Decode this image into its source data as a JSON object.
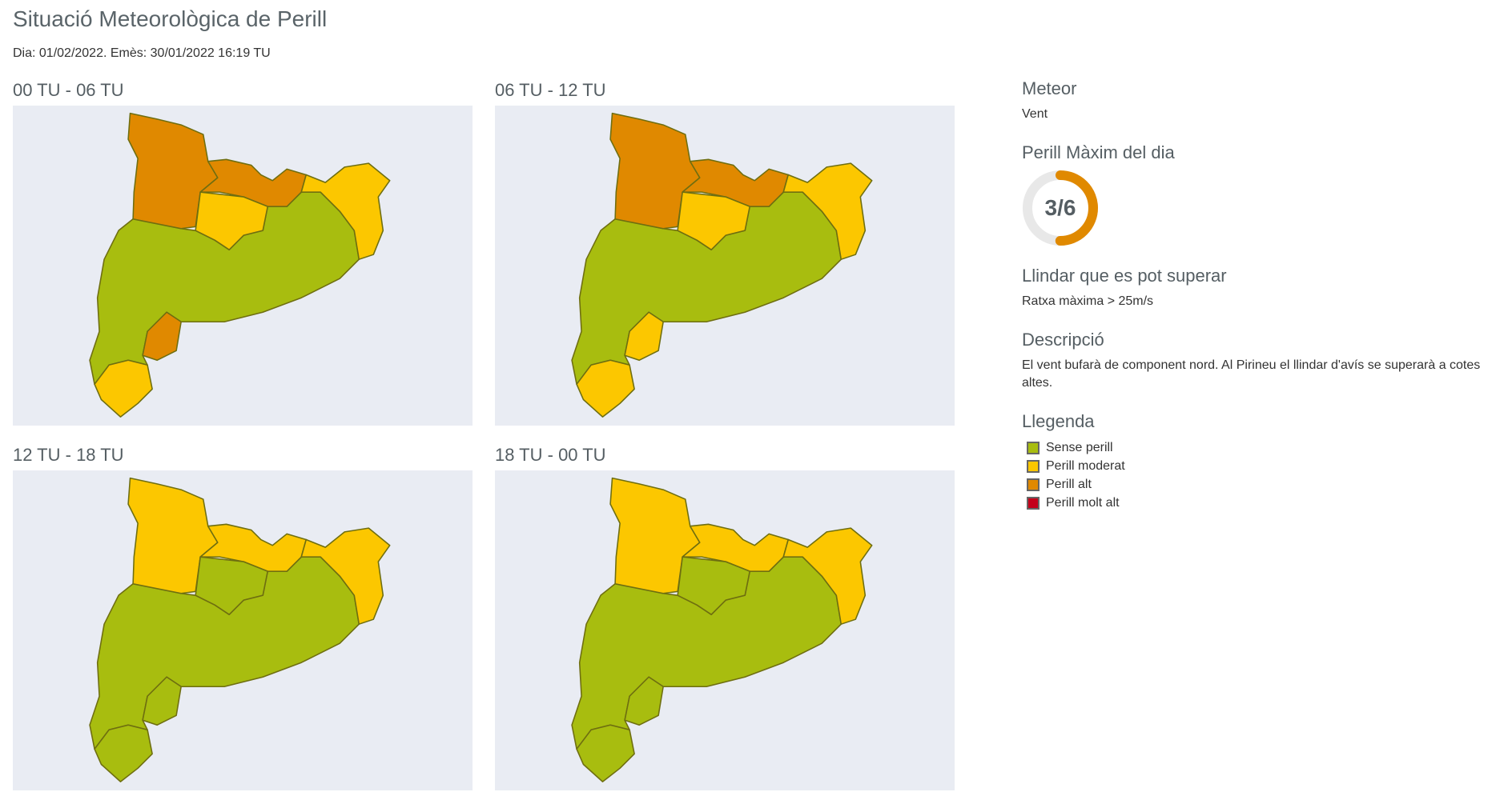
{
  "header": {
    "title": "Situació Meteorològica de Perill",
    "subtitle": "Dia: 01/02/2022. Emès: 30/01/2022 16:19 TU"
  },
  "colors": {
    "sense": "#a8bd0f",
    "moderat": "#fcc700",
    "alt": "#e08900",
    "molt_alt": "#c4001a",
    "gauge_track": "#e8e8e8"
  },
  "maps": [
    {
      "label": "00 TU - 06 TU",
      "zones": {
        "nw": "alt",
        "n": "alt",
        "c": "moderat",
        "ne": "moderat",
        "s": "moderat",
        "sw": "alt",
        "rest": "sense"
      }
    },
    {
      "label": "06 TU - 12 TU",
      "zones": {
        "nw": "alt",
        "n": "alt",
        "c": "moderat",
        "ne": "moderat",
        "s": "moderat",
        "sw": "moderat",
        "rest": "sense"
      }
    },
    {
      "label": "12 TU - 18 TU",
      "zones": {
        "nw": "moderat",
        "n": "moderat",
        "c": "sense",
        "ne": "moderat",
        "s": "sense",
        "sw": "sense",
        "rest": "sense"
      }
    },
    {
      "label": "18 TU - 00 TU",
      "zones": {
        "nw": "moderat",
        "n": "moderat",
        "c": "sense",
        "ne": "moderat",
        "s": "sense",
        "sw": "sense",
        "rest": "sense"
      }
    }
  ],
  "side": {
    "meteor_title": "Meteor",
    "meteor_value": "Vent",
    "max_title": "Perill Màxim del dia",
    "max_value": "3/6",
    "max_level": 3,
    "max_scale": 6,
    "threshold_title": "Llindar que es pot superar",
    "threshold_value": "Ratxa màxima > 25m/s",
    "desc_title": "Descripció",
    "desc_value": "El vent bufarà de component nord. Al Pirineu el llindar d'avís se superarà a cotes altes.",
    "legend_title": "Llegenda",
    "legend": [
      {
        "label": "Sense perill",
        "level": "sense"
      },
      {
        "label": "Perill moderat",
        "level": "moderat"
      },
      {
        "label": "Perill alt",
        "level": "alt"
      },
      {
        "label": "Perill molt alt",
        "level": "molt_alt"
      }
    ]
  }
}
